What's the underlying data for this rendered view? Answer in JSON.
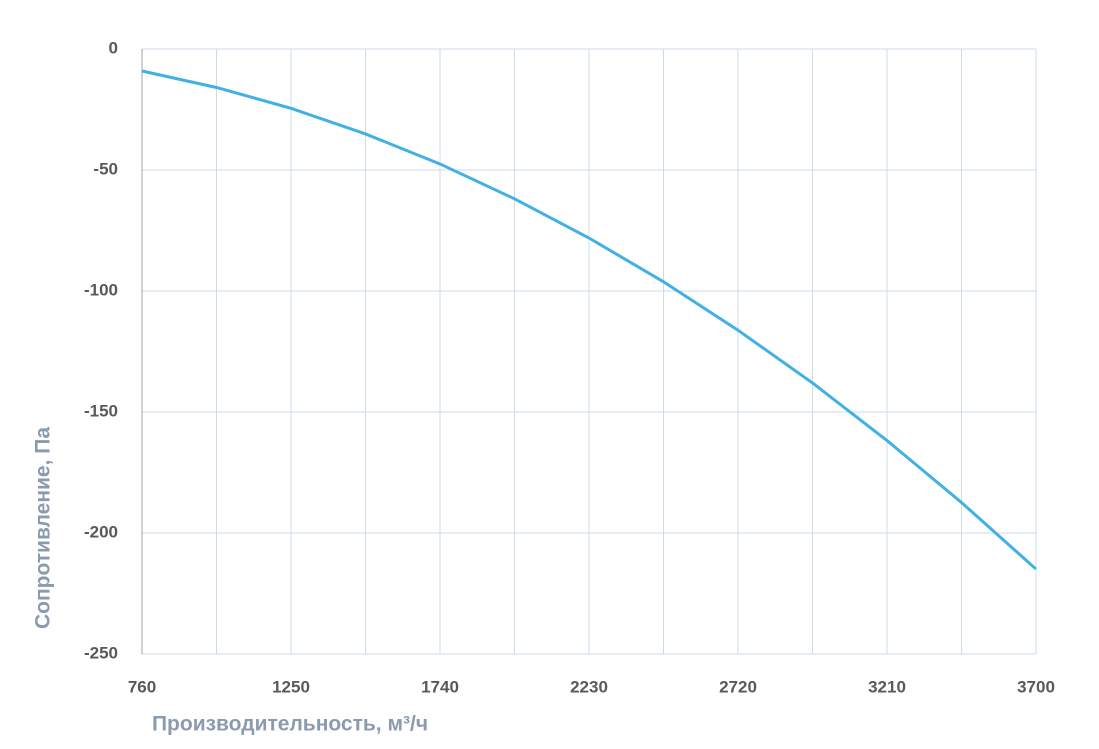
{
  "chart_data": {
    "type": "line",
    "xlabel": "Производительность, м³/ч",
    "ylabel": "Сопротивление, Па",
    "x": [
      760,
      1005,
      1250,
      1495,
      1740,
      1985,
      2230,
      2475,
      2720,
      2965,
      3210,
      3455,
      3700
    ],
    "series": [
      {
        "color": "#41b0e4",
        "values": [
          -9.1,
          -15.9,
          -24.5,
          -35.1,
          -47.5,
          -61.9,
          -78.1,
          -96.2,
          -116.2,
          -138.0,
          -161.8,
          -187.4,
          -214.9
        ]
      }
    ],
    "xlim": [
      760,
      3700
    ],
    "xticks": [
      760,
      1250,
      1740,
      2230,
      2720,
      3210,
      3700
    ],
    "x_minor_ticks": [
      1005,
      1495,
      1985,
      2475,
      2965,
      3455
    ],
    "ylim": [
      -250,
      0
    ],
    "yticks": [
      0,
      -50,
      -100,
      -150,
      -200,
      -250
    ],
    "grid": true
  }
}
